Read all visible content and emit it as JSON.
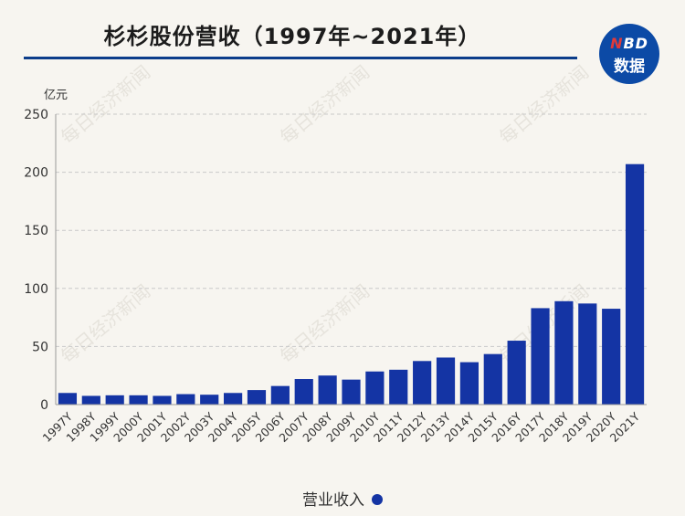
{
  "header": {
    "title": "杉杉股份营收（1997年~2021年）",
    "logo_top": "NBD",
    "logo_bottom": "数据"
  },
  "chart_data": {
    "type": "bar",
    "title": "杉杉股份营收（1997年~2021年）",
    "ylabel": "亿元",
    "xlabel": "",
    "ylim": [
      0,
      250
    ],
    "yticks": [
      0,
      50,
      100,
      150,
      200,
      250
    ],
    "grid": true,
    "legend_position": "bottom",
    "categories": [
      "1997Y",
      "1998Y",
      "1999Y",
      "2000Y",
      "2001Y",
      "2002Y",
      "2003Y",
      "2004Y",
      "2005Y",
      "2006Y",
      "2007Y",
      "2008Y",
      "2009Y",
      "2010Y",
      "2011Y",
      "2012Y",
      "2013Y",
      "2014Y",
      "2015Y",
      "2016Y",
      "2017Y",
      "2018Y",
      "2019Y",
      "2020Y",
      "2021Y"
    ],
    "series": [
      {
        "name": "营业收入",
        "color": "#1434a4",
        "values": [
          10,
          7.5,
          8,
          8,
          7.5,
          9,
          8.5,
          10,
          12.5,
          16,
          22,
          25,
          21.5,
          28.5,
          30,
          37.5,
          40.5,
          36.5,
          43.5,
          55,
          83,
          89,
          87,
          82.5,
          207
        ]
      }
    ]
  },
  "legend": {
    "label": "营业收入",
    "color": "#1434a4"
  },
  "watermark": "每日经济新闻"
}
